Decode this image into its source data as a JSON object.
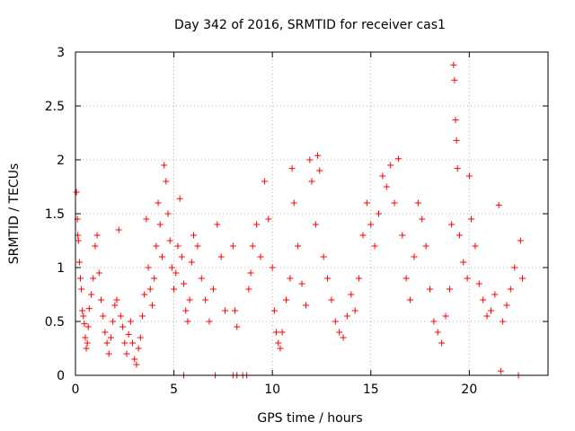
{
  "chart_data": {
    "type": "scatter",
    "title": "Day 342 of 2016, SRMTID for receiver cas1",
    "xlabel": "GPS time / hours",
    "ylabel": "SRMTID / TECUs",
    "xlim": [
      0,
      24
    ],
    "ylim": [
      0,
      3
    ],
    "xticks": [
      0,
      5,
      10,
      15,
      20
    ],
    "xtick_labels": [
      "0",
      "5",
      "10",
      "15",
      "20"
    ],
    "yticks": [
      0,
      0.5,
      1,
      1.5,
      2,
      2.5,
      3
    ],
    "ytick_labels": [
      "0",
      "0.5",
      "1",
      "1.5",
      "2",
      "2.5",
      "3"
    ],
    "grid": true,
    "marker": "+",
    "series": [
      {
        "name": "SRMTID",
        "color": "#ff0000",
        "points": [
          [
            0.05,
            1.7
          ],
          [
            0.1,
            1.45
          ],
          [
            0.12,
            1.3
          ],
          [
            0.15,
            1.25
          ],
          [
            0.2,
            1.05
          ],
          [
            0.25,
            0.9
          ],
          [
            0.3,
            0.8
          ],
          [
            0.35,
            0.6
          ],
          [
            0.4,
            0.55
          ],
          [
            0.45,
            0.48
          ],
          [
            0.5,
            0.35
          ],
          [
            0.55,
            0.25
          ],
          [
            0.6,
            0.3
          ],
          [
            0.65,
            0.45
          ],
          [
            0.7,
            0.62
          ],
          [
            0.8,
            0.75
          ],
          [
            0.9,
            0.9
          ],
          [
            1.0,
            1.2
          ],
          [
            1.1,
            1.3
          ],
          [
            1.2,
            0.95
          ],
          [
            1.3,
            0.7
          ],
          [
            1.4,
            0.55
          ],
          [
            1.5,
            0.4
          ],
          [
            1.6,
            0.3
          ],
          [
            1.7,
            0.2
          ],
          [
            1.8,
            0.35
          ],
          [
            1.9,
            0.5
          ],
          [
            2.0,
            0.65
          ],
          [
            2.1,
            0.7
          ],
          [
            2.2,
            1.35
          ],
          [
            2.3,
            0.55
          ],
          [
            2.4,
            0.45
          ],
          [
            2.5,
            0.3
          ],
          [
            2.6,
            0.2
          ],
          [
            2.7,
            0.38
          ],
          [
            2.8,
            0.5
          ],
          [
            2.9,
            0.3
          ],
          [
            3.0,
            0.15
          ],
          [
            3.1,
            0.1
          ],
          [
            3.2,
            0.25
          ],
          [
            3.3,
            0.35
          ],
          [
            3.4,
            0.55
          ],
          [
            3.5,
            0.75
          ],
          [
            3.6,
            1.45
          ],
          [
            3.7,
            1.0
          ],
          [
            3.8,
            0.8
          ],
          [
            3.9,
            0.65
          ],
          [
            4.0,
            0.9
          ],
          [
            4.1,
            1.2
          ],
          [
            4.2,
            1.6
          ],
          [
            4.3,
            1.4
          ],
          [
            4.4,
            1.1
          ],
          [
            4.5,
            1.95
          ],
          [
            4.6,
            1.8
          ],
          [
            4.7,
            1.5
          ],
          [
            4.8,
            1.25
          ],
          [
            4.9,
            1.0
          ],
          [
            5.0,
            0.8
          ],
          [
            5.1,
            0.95
          ],
          [
            5.2,
            1.2
          ],
          [
            5.3,
            1.64
          ],
          [
            5.4,
            1.1
          ],
          [
            5.5,
            0.85
          ],
          [
            5.6,
            0.6
          ],
          [
            5.7,
            0.5
          ],
          [
            5.8,
            0.7
          ],
          [
            5.9,
            1.05
          ],
          [
            6.0,
            1.3
          ],
          [
            6.2,
            1.2
          ],
          [
            6.4,
            0.9
          ],
          [
            6.6,
            0.7
          ],
          [
            6.8,
            0.5
          ],
          [
            7.0,
            0.8
          ],
          [
            7.2,
            1.4
          ],
          [
            7.4,
            1.1
          ],
          [
            7.6,
            0.6
          ],
          [
            5.5,
            0.0
          ],
          [
            7.1,
            0.0
          ],
          [
            8.0,
            0.0
          ],
          [
            8.2,
            0.0
          ],
          [
            8.5,
            0.0
          ],
          [
            8.7,
            0.0
          ],
          [
            8.0,
            1.2
          ],
          [
            8.1,
            0.6
          ],
          [
            8.2,
            0.45
          ],
          [
            8.8,
            0.8
          ],
          [
            8.9,
            0.95
          ],
          [
            9.0,
            1.2
          ],
          [
            9.2,
            1.4
          ],
          [
            9.4,
            1.1
          ],
          [
            9.6,
            1.8
          ],
          [
            9.8,
            1.45
          ],
          [
            10.0,
            1.0
          ],
          [
            10.1,
            0.6
          ],
          [
            10.2,
            0.4
          ],
          [
            10.3,
            0.3
          ],
          [
            10.4,
            0.25
          ],
          [
            10.5,
            0.4
          ],
          [
            10.7,
            0.7
          ],
          [
            10.9,
            0.9
          ],
          [
            11.0,
            1.92
          ],
          [
            11.1,
            1.6
          ],
          [
            11.3,
            1.2
          ],
          [
            11.5,
            0.85
          ],
          [
            11.7,
            0.65
          ],
          [
            11.9,
            2.0
          ],
          [
            12.0,
            1.8
          ],
          [
            12.2,
            1.4
          ],
          [
            12.3,
            2.04
          ],
          [
            12.4,
            1.9
          ],
          [
            12.6,
            1.1
          ],
          [
            12.8,
            0.9
          ],
          [
            13.0,
            0.7
          ],
          [
            13.2,
            0.5
          ],
          [
            13.4,
            0.4
          ],
          [
            13.6,
            0.35
          ],
          [
            13.8,
            0.55
          ],
          [
            14.0,
            0.75
          ],
          [
            14.2,
            0.6
          ],
          [
            14.4,
            0.9
          ],
          [
            14.6,
            1.3
          ],
          [
            14.8,
            1.6
          ],
          [
            15.0,
            1.4
          ],
          [
            15.2,
            1.2
          ],
          [
            15.4,
            1.5
          ],
          [
            15.6,
            1.85
          ],
          [
            15.8,
            1.75
          ],
          [
            16.0,
            1.95
          ],
          [
            16.2,
            1.6
          ],
          [
            16.4,
            2.01
          ],
          [
            16.6,
            1.3
          ],
          [
            16.8,
            0.9
          ],
          [
            17.0,
            0.7
          ],
          [
            17.2,
            1.1
          ],
          [
            17.4,
            1.6
          ],
          [
            17.6,
            1.45
          ],
          [
            17.8,
            1.2
          ],
          [
            18.0,
            0.8
          ],
          [
            18.2,
            0.5
          ],
          [
            18.4,
            0.4
          ],
          [
            18.6,
            0.3
          ],
          [
            18.8,
            0.55
          ],
          [
            19.0,
            0.8
          ],
          [
            19.1,
            1.4
          ],
          [
            19.2,
            2.88
          ],
          [
            19.25,
            2.74
          ],
          [
            19.3,
            2.37
          ],
          [
            19.35,
            2.18
          ],
          [
            19.4,
            1.92
          ],
          [
            19.5,
            1.3
          ],
          [
            19.7,
            1.05
          ],
          [
            19.9,
            0.9
          ],
          [
            20.0,
            1.85
          ],
          [
            20.1,
            1.45
          ],
          [
            20.3,
            1.2
          ],
          [
            20.5,
            0.85
          ],
          [
            20.7,
            0.7
          ],
          [
            20.9,
            0.55
          ],
          [
            21.1,
            0.6
          ],
          [
            21.3,
            0.75
          ],
          [
            21.5,
            1.58
          ],
          [
            21.6,
            0.04
          ],
          [
            21.7,
            0.5
          ],
          [
            21.9,
            0.65
          ],
          [
            22.1,
            0.8
          ],
          [
            22.3,
            1.0
          ],
          [
            22.5,
            0.0
          ],
          [
            22.6,
            1.25
          ],
          [
            22.7,
            0.9
          ]
        ]
      }
    ]
  }
}
